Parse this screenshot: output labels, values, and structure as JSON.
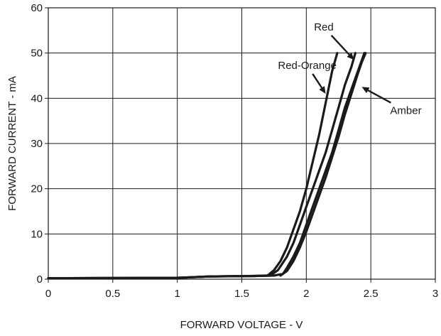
{
  "chart_data": {
    "type": "line",
    "title": "",
    "xlabel": "FORWARD VOLTAGE - V",
    "ylabel": "FORWARD CURRENT - mA",
    "xlim": [
      0,
      3
    ],
    "ylim": [
      0,
      60
    ],
    "x_ticks": [
      "0",
      "0.5",
      "1",
      "1.5",
      "2",
      "2.5",
      "3"
    ],
    "y_ticks": [
      "0",
      "10",
      "20",
      "30",
      "40",
      "50",
      "60"
    ],
    "grid": true,
    "series": [
      {
        "name": "Red-Orange",
        "points": [
          [
            0,
            0.2
          ],
          [
            1.0,
            0.3
          ],
          [
            1.25,
            0.6
          ],
          [
            1.6,
            0.7
          ],
          [
            1.7,
            0.8
          ],
          [
            1.75,
            2
          ],
          [
            1.8,
            4
          ],
          [
            1.85,
            7
          ],
          [
            1.9,
            11
          ],
          [
            1.95,
            15
          ],
          [
            2.0,
            20
          ],
          [
            2.05,
            26
          ],
          [
            2.1,
            32
          ],
          [
            2.15,
            39
          ],
          [
            2.2,
            46
          ],
          [
            2.24,
            50
          ]
        ]
      },
      {
        "name": "Red",
        "points": [
          [
            0,
            0.2
          ],
          [
            1.0,
            0.3
          ],
          [
            1.25,
            0.6
          ],
          [
            1.6,
            0.7
          ],
          [
            1.72,
            0.8
          ],
          [
            1.78,
            2
          ],
          [
            1.85,
            5
          ],
          [
            1.9,
            8
          ],
          [
            1.95,
            12
          ],
          [
            2.0,
            16
          ],
          [
            2.05,
            20
          ],
          [
            2.1,
            24
          ],
          [
            2.15,
            28
          ],
          [
            2.2,
            33
          ],
          [
            2.25,
            38
          ],
          [
            2.3,
            43
          ],
          [
            2.35,
            47
          ],
          [
            2.38,
            50
          ]
        ]
      },
      {
        "name": "Amber",
        "points": [
          [
            0,
            0.2
          ],
          [
            1.0,
            0.3
          ],
          [
            1.25,
            0.6
          ],
          [
            1.6,
            0.7
          ],
          [
            1.75,
            0.8
          ],
          [
            1.82,
            1.2
          ],
          [
            1.85,
            2.5
          ],
          [
            1.9,
            5
          ],
          [
            1.95,
            8
          ],
          [
            2.0,
            12
          ],
          [
            2.05,
            16
          ],
          [
            2.1,
            20
          ],
          [
            2.15,
            24
          ],
          [
            2.2,
            28
          ],
          [
            2.25,
            33
          ],
          [
            2.3,
            38
          ],
          [
            2.35,
            42
          ],
          [
            2.4,
            46
          ],
          [
            2.45,
            50
          ]
        ]
      },
      {
        "name": "Amber",
        "points": [
          [
            1.8,
            0.8
          ],
          [
            1.85,
            1.8
          ],
          [
            1.9,
            4
          ],
          [
            1.95,
            7
          ],
          [
            2.0,
            10.5
          ],
          [
            2.05,
            14.5
          ],
          [
            2.1,
            18.5
          ],
          [
            2.15,
            22.5
          ],
          [
            2.2,
            27
          ],
          [
            2.25,
            31.5
          ],
          [
            2.3,
            36.5
          ],
          [
            2.35,
            41
          ],
          [
            2.4,
            45.5
          ],
          [
            2.43,
            48
          ],
          [
            2.46,
            50
          ]
        ]
      }
    ],
    "annotations": [
      {
        "text": "Red-Orange",
        "x": 1.78,
        "y": 46.5,
        "arrow_to": [
          2.15,
          41
        ]
      },
      {
        "text": "Red",
        "x": 2.06,
        "y": 55,
        "arrow_to": [
          2.37,
          48.5
        ]
      },
      {
        "text": "Amber",
        "x": 2.65,
        "y": 36.5,
        "arrow_to": [
          2.43,
          42.5
        ]
      }
    ]
  }
}
